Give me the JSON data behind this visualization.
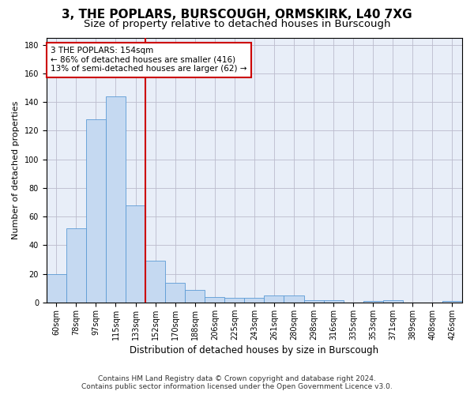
{
  "title": "3, THE POPLARS, BURSCOUGH, ORMSKIRK, L40 7XG",
  "subtitle": "Size of property relative to detached houses in Burscough",
  "xlabel": "Distribution of detached houses by size in Burscough",
  "ylabel": "Number of detached properties",
  "categories": [
    "60sqm",
    "78sqm",
    "97sqm",
    "115sqm",
    "133sqm",
    "152sqm",
    "170sqm",
    "188sqm",
    "206sqm",
    "225sqm",
    "243sqm",
    "261sqm",
    "280sqm",
    "298sqm",
    "316sqm",
    "335sqm",
    "353sqm",
    "371sqm",
    "389sqm",
    "408sqm",
    "426sqm"
  ],
  "values": [
    20,
    52,
    128,
    144,
    68,
    29,
    14,
    9,
    4,
    3,
    3,
    5,
    5,
    1.5,
    1.5,
    0,
    1,
    1.5,
    0,
    0,
    1
  ],
  "bar_color": "#c5d9f1",
  "bar_edge_color": "#5b9bd5",
  "annotation_text_line1": "3 THE POPLARS: 154sqm",
  "annotation_text_line2": "← 86% of detached houses are smaller (416)",
  "annotation_text_line3": "13% of semi-detached houses are larger (62) →",
  "annotation_box_color": "#ffffff",
  "annotation_box_edge_color": "#cc0000",
  "vline_color": "#cc0000",
  "ylim": [
    0,
    185
  ],
  "yticks": [
    0,
    20,
    40,
    60,
    80,
    100,
    120,
    140,
    160,
    180
  ],
  "footer_line1": "Contains HM Land Registry data © Crown copyright and database right 2024.",
  "footer_line2": "Contains public sector information licensed under the Open Government Licence v3.0.",
  "background_color": "#e8eef8",
  "grid_color": "#bbbbcc",
  "title_fontsize": 11,
  "subtitle_fontsize": 9.5,
  "xlabel_fontsize": 8.5,
  "ylabel_fontsize": 8,
  "tick_fontsize": 7,
  "annotation_fontsize": 7.5,
  "footer_fontsize": 6.5
}
